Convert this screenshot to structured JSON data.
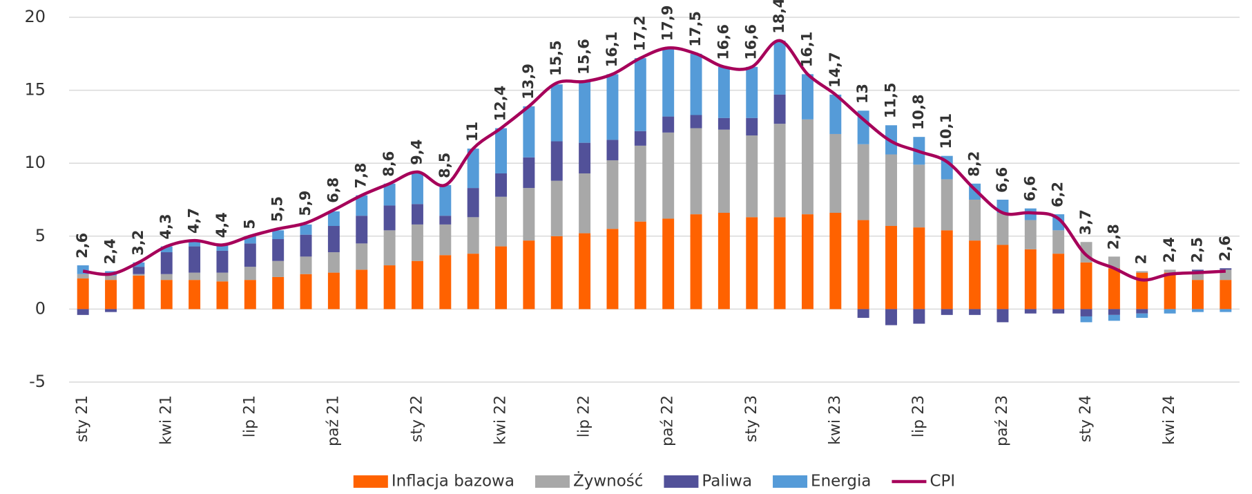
{
  "chart_data": {
    "type": "bar",
    "categories": [
      "sty 21",
      null,
      null,
      "kwi 21",
      null,
      null,
      "lip 21",
      null,
      null,
      "paź 21",
      null,
      null,
      "sty 22",
      null,
      null,
      "kwi 22",
      null,
      null,
      "lip 22",
      null,
      null,
      "paź 22",
      null,
      null,
      "sty 23",
      null,
      null,
      "kwi 23",
      null,
      null,
      "lip 23",
      null,
      null,
      "paź 23",
      null,
      null,
      "sty 24",
      null,
      null,
      "kwi 24",
      null,
      null
    ],
    "stacked": true,
    "series": [
      {
        "name": "Inflacja bazowa",
        "color": "#ff6200",
        "values": [
          2.1,
          2.0,
          2.3,
          2.0,
          2.0,
          1.9,
          2.0,
          2.2,
          2.4,
          2.5,
          2.7,
          3.0,
          3.3,
          3.7,
          3.8,
          4.3,
          4.7,
          5.0,
          5.2,
          5.5,
          6.0,
          6.2,
          6.5,
          6.6,
          6.3,
          6.3,
          6.5,
          6.6,
          6.1,
          5.7,
          5.6,
          5.4,
          4.7,
          4.4,
          4.1,
          3.8,
          3.2,
          2.8,
          2.5,
          2.5,
          2.0,
          2.0
        ]
      },
      {
        "name": "Żywność",
        "color": "#a8a8a8",
        "values": [
          0.3,
          0.3,
          0.1,
          0.4,
          0.5,
          0.6,
          0.9,
          1.1,
          1.2,
          1.4,
          1.8,
          2.4,
          2.5,
          2.1,
          2.5,
          3.4,
          3.6,
          3.8,
          4.1,
          4.7,
          5.2,
          5.9,
          5.9,
          5.7,
          5.6,
          6.4,
          6.5,
          5.4,
          5.2,
          4.9,
          4.3,
          3.5,
          2.8,
          2.2,
          2.0,
          1.6,
          1.4,
          0.8,
          0.1,
          0.2,
          0.6,
          0.7
        ]
      },
      {
        "name": "Paliwa",
        "color": "#525199",
        "values": [
          -0.4,
          -0.2,
          0.5,
          1.5,
          1.8,
          1.5,
          1.6,
          1.5,
          1.5,
          1.8,
          1.9,
          1.7,
          1.4,
          0.6,
          2.0,
          1.6,
          2.1,
          2.7,
          2.1,
          1.4,
          1.0,
          1.1,
          0.9,
          0.8,
          1.2,
          2.0,
          0.0,
          0.0,
          -0.6,
          -1.1,
          -1.0,
          -0.4,
          -0.4,
          -0.9,
          -0.3,
          -0.3,
          -0.5,
          -0.4,
          -0.3,
          0.0,
          0.1,
          0.1
        ]
      },
      {
        "name": "Energia",
        "color": "#559bd8",
        "values": [
          0.6,
          0.3,
          0.3,
          0.4,
          0.4,
          0.4,
          0.5,
          0.6,
          0.7,
          1.0,
          1.4,
          1.5,
          2.1,
          2.1,
          2.7,
          3.1,
          3.5,
          3.9,
          4.2,
          4.5,
          5.0,
          4.6,
          4.2,
          3.5,
          3.5,
          3.7,
          3.1,
          2.7,
          2.3,
          2.0,
          1.9,
          1.6,
          1.1,
          0.9,
          0.8,
          1.1,
          -0.4,
          -0.4,
          -0.3,
          -0.3,
          -0.2,
          -0.2
        ]
      }
    ],
    "line": {
      "name": "CPI",
      "color": "#a6005a",
      "values": [
        2.6,
        2.4,
        3.2,
        4.3,
        4.7,
        4.4,
        5,
        5.5,
        5.9,
        6.8,
        7.8,
        8.6,
        9.4,
        8.5,
        11,
        12.4,
        13.9,
        15.5,
        15.6,
        16.1,
        17.2,
        17.9,
        17.5,
        16.6,
        16.6,
        18.4,
        16.1,
        14.7,
        13,
        11.5,
        10.8,
        10.1,
        8.2,
        6.6,
        6.6,
        6.2,
        3.7,
        2.8,
        2,
        2.4,
        2.5,
        2.6
      ],
      "value_labels": [
        "2,6",
        "2,4",
        "3,2",
        "4,3",
        "4,7",
        "4,4",
        "5",
        "5,5",
        "5,9",
        "6,8",
        "7,8",
        "8,6",
        "9,4",
        "8,5",
        "11",
        "12,4",
        "13,9",
        "15,5",
        "15,6",
        "16,1",
        "17,2",
        "17,9",
        "17,5",
        "16,6",
        "16,6",
        "18,4",
        "16,1",
        "14,7",
        "13",
        "11,5",
        "10,8",
        "10,1",
        "8,2",
        "6,6",
        "6,6",
        "6,2",
        "3,7",
        "2,8",
        "2",
        "2,4",
        "2,5",
        "2,6"
      ]
    },
    "ylim": [
      -5,
      20
    ],
    "yticks": [
      -5,
      0,
      5,
      10,
      15,
      20
    ],
    "grid": true,
    "legend": "bottom"
  }
}
